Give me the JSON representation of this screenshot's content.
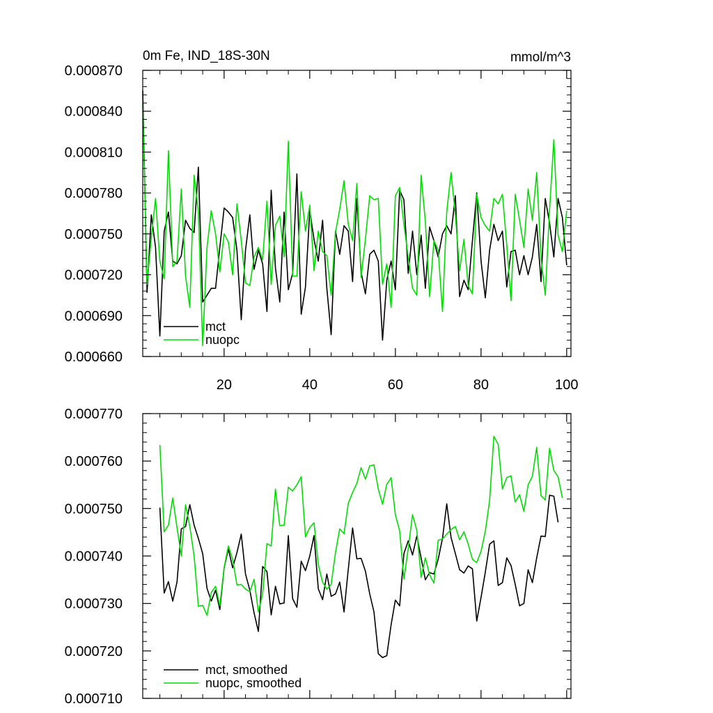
{
  "figure": {
    "title_left": "0m Fe, IND_18S-30N",
    "title_right": "mmol/m^3"
  },
  "chart_data": [
    {
      "type": "line",
      "title": "0m Fe, IND_18S-30N",
      "units": "mmol/m^3",
      "xlim": [
        1,
        101
      ],
      "ylim": [
        0.00066,
        0.00087
      ],
      "x_ticks": [
        20,
        40,
        60,
        80,
        100
      ],
      "y_ticks": [
        0.00066,
        0.00069,
        0.00072,
        0.00075,
        0.00078,
        0.00081,
        0.00084,
        0.00087
      ],
      "y_tick_labels": [
        "0.000660",
        "0.000690",
        "0.000720",
        "0.000750",
        "0.000780",
        "0.000810",
        "0.000840",
        "0.000870"
      ],
      "legend_position": "bottom-left",
      "x_start": 1,
      "series": [
        {
          "name": "mct",
          "color": "#000000",
          "values": [
            0.000855,
            0.000707,
            0.000764,
            0.00074,
            0.000675,
            0.000752,
            0.000766,
            0.00073,
            0.000728,
            0.000734,
            0.00076,
            0.000754,
            0.000751,
            0.000799,
            0.0007,
            0.000705,
            0.00071,
            0.00071,
            0.00074,
            0.000769,
            0.000766,
            0.000762,
            0.000738,
            0.000687,
            0.000738,
            0.000764,
            0.000724,
            0.000738,
            0.000728,
            0.000693,
            0.000782,
            0.000725,
            0.0007,
            0.000766,
            0.000709,
            0.000721,
            0.000794,
            0.000691,
            0.000711,
            0.000767,
            0.000746,
            0.00073,
            0.00076,
            0.00071,
            0.000676,
            0.000752,
            0.000735,
            0.000756,
            0.000752,
            0.000715,
            0.000776,
            0.000722,
            0.000706,
            0.000735,
            0.000738,
            0.00073,
            0.000672,
            0.000716,
            0.00073,
            0.000709,
            0.000782,
            0.000775,
            0.000721,
            0.000752,
            0.00072,
            0.000749,
            0.00071,
            0.000755,
            0.000745,
            0.000733,
            0.00075,
            0.000756,
            0.00075,
            0.000778,
            0.000704,
            0.000716,
            0.000709,
            0.000745,
            0.00078,
            0.00073,
            0.000703,
            0.000738,
            0.000757,
            0.000745,
            0.000752,
            0.000711,
            0.000737,
            0.000738,
            0.00072,
            0.000734,
            0.00072,
            0.000733,
            0.000757,
            0.000715,
            0.000776,
            0.000758,
            0.000733,
            0.000776,
            0.000762,
            0.000727
          ]
        },
        {
          "name": "nuopc",
          "color": "#00dd00",
          "values": [
            0.000845,
            0.000713,
            0.000747,
            0.000776,
            0.00073,
            0.000717,
            0.000811,
            0.000726,
            0.00073,
            0.000783,
            0.000719,
            0.000696,
            0.000793,
            0.000766,
            0.000668,
            0.00074,
            0.000767,
            0.00075,
            0.000722,
            0.00075,
            0.000744,
            0.00072,
            0.000772,
            0.000745,
            0.000714,
            0.000712,
            0.000733,
            0.00074,
            0.000731,
            0.000774,
            0.000713,
            0.000756,
            0.000763,
            0.000733,
            0.000818,
            0.000719,
            0.000719,
            0.000781,
            0.000752,
            0.000771,
            0.000723,
            0.000752,
            0.000737,
            0.000734,
            0.000705,
            0.000751,
            0.000768,
            0.000789,
            0.000757,
            0.000745,
            0.000787,
            0.000718,
            0.000746,
            0.000778,
            0.000775,
            0.000776,
            0.000713,
            0.000728,
            0.000696,
            0.000778,
            0.000784,
            0.000757,
            0.000733,
            0.00071,
            0.000705,
            0.000793,
            0.000759,
            0.000704,
            0.000745,
            0.000738,
            0.000693,
            0.000766,
            0.000795,
            0.000764,
            0.000723,
            0.000746,
            0.000712,
            0.000706,
            0.000779,
            0.000762,
            0.000756,
            0.000752,
            0.000776,
            0.000772,
            0.000779,
            0.000742,
            0.000701,
            0.000779,
            0.00076,
            0.00074,
            0.000783,
            0.00076,
            0.000795,
            0.000732,
            0.000705,
            0.000768,
            0.000819,
            0.000749,
            0.000737,
            0.000767
          ]
        }
      ]
    },
    {
      "type": "line",
      "title": "",
      "xlim": [
        1,
        101
      ],
      "ylim": [
        0.00071,
        0.00077
      ],
      "x_ticks": [
        20,
        40,
        60,
        80,
        100
      ],
      "x_tick_labels_visible": false,
      "y_ticks": [
        0.00071,
        0.00072,
        0.00073,
        0.00074,
        0.00075,
        0.00076,
        0.00077
      ],
      "y_tick_labels": [
        "0.000710",
        "0.000720",
        "0.000730",
        "0.000740",
        "0.000750",
        "0.000760",
        "0.000770"
      ],
      "legend_position": "bottom-left",
      "x_start": 5,
      "series": [
        {
          "name": "mct, smoothed",
          "color": "#000000",
          "values": [
            0.0007502,
            0.0007322,
            0.0007346,
            0.0007305,
            0.0007345,
            0.0007457,
            0.0007462,
            0.0007508,
            0.0007465,
            0.0007437,
            0.0007405,
            0.0007332,
            0.0007305,
            0.0007328,
            0.0007287,
            0.0007375,
            0.0007415,
            0.0007375,
            0.0007407,
            0.0007446,
            0.0007362,
            0.0007328,
            0.000728,
            0.0007241,
            0.0007378,
            0.0007367,
            0.0007276,
            0.0007336,
            0.0007299,
            0.0007301,
            0.0007443,
            0.000731,
            0.0007292,
            0.0007389,
            0.0007369,
            0.00074,
            0.0007443,
            0.0007331,
            0.0007308,
            0.0007362,
            0.0007315,
            0.000732,
            0.0007345,
            0.0007282,
            0.0007372,
            0.0007459,
            0.0007394,
            0.0007395,
            0.0007368,
            0.000732,
            0.0007282,
            0.0007194,
            0.0007186,
            0.000719,
            0.0007255,
            0.0007307,
            0.0007295,
            0.0007405,
            0.0007432,
            0.0007402,
            0.0007442,
            0.0007396,
            0.000735,
            0.0007365,
            0.0007362,
            0.0007393,
            0.0007437,
            0.000751,
            0.0007439,
            0.0007405,
            0.0007371,
            0.0007364,
            0.0007379,
            0.0007373,
            0.0007263,
            0.0007313,
            0.0007366,
            0.0007425,
            0.0007432,
            0.0007338,
            0.0007344,
            0.0007396,
            0.000738,
            0.000734,
            0.0007295,
            0.00073,
            0.0007371,
            0.0007344,
            0.0007396,
            0.0007442,
            0.0007441,
            0.0007528,
            0.0007526,
            0.0007471
          ]
        },
        {
          "name": "nuopc, smoothed",
          "color": "#00dd00",
          "values": [
            0.0007634,
            0.0007451,
            0.0007465,
            0.0007522,
            0.000746,
            0.00074,
            0.0007508,
            0.0007462,
            0.00074,
            0.0007294,
            0.0007296,
            0.0007275,
            0.0007323,
            0.0007336,
            0.0007295,
            0.0007376,
            0.0007421,
            0.0007393,
            0.0007339,
            0.000734,
            0.000733,
            0.0007325,
            0.0007351,
            0.0007282,
            0.000732,
            0.0007426,
            0.0007421,
            0.0007541,
            0.0007464,
            0.0007465,
            0.0007545,
            0.0007537,
            0.000755,
            0.0007567,
            0.000744,
            0.000746,
            0.000747,
            0.0007382,
            0.0007345,
            0.000733,
            0.000734,
            0.0007407,
            0.0007457,
            0.0007447,
            0.0007511,
            0.0007534,
            0.0007553,
            0.0007586,
            0.0007562,
            0.000759,
            0.0007592,
            0.0007541,
            0.0007509,
            0.0007551,
            0.0007565,
            0.0007487,
            0.0007453,
            0.0007351,
            0.0007416,
            0.0007487,
            0.0007454,
            0.0007355,
            0.0007396,
            0.000736,
            0.0007343,
            0.0007433,
            0.0007436,
            0.0007446,
            0.0007456,
            0.0007462,
            0.0007434,
            0.0007451,
            0.0007425,
            0.0007393,
            0.0007386,
            0.000741,
            0.0007452,
            0.0007517,
            0.0007652,
            0.0007635,
            0.0007541,
            0.0007565,
            0.0007569,
            0.0007514,
            0.0007529,
            0.0007494,
            0.000755,
            0.0007568,
            0.0007629,
            0.0007527,
            0.0007518,
            0.0007627,
            0.000758,
            0.0007567,
            0.0007522
          ]
        }
      ]
    }
  ]
}
